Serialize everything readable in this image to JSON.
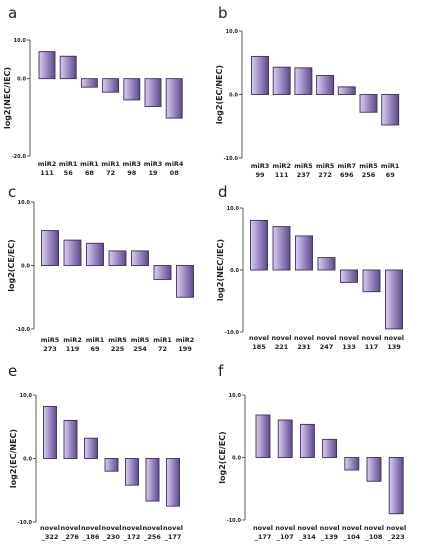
{
  "chart_data": [
    {
      "type": "bar",
      "panel": "a",
      "ylabel": "log2(NEC/IEC)",
      "ylim": [
        -20,
        10
      ],
      "yticks": [
        "10.0",
        "0.0",
        "-20.0"
      ],
      "categories": [
        [
          "miR2",
          "111"
        ],
        [
          "miR1",
          "56"
        ],
        [
          "miR1",
          "68"
        ],
        [
          "miR1",
          "72"
        ],
        [
          "miR3",
          "98"
        ],
        [
          "miR3",
          "19"
        ],
        [
          "miR4",
          "08"
        ]
      ],
      "values": [
        7.0,
        5.8,
        -2.2,
        -3.5,
        -5.5,
        -7.2,
        -10.2
      ],
      "colors": {
        "bar_light": "#d9d0ec",
        "bar_dark": "#5e4a86",
        "bar_edge": "#3c3058"
      }
    },
    {
      "type": "bar",
      "panel": "b",
      "ylabel": "log2(EC/NEC)",
      "ylim": [
        -10,
        10
      ],
      "yticks": [
        "10.0",
        "0.0",
        "-10.0"
      ],
      "categories": [
        [
          "miR3",
          "99"
        ],
        [
          "miR2",
          "111"
        ],
        [
          "miR5",
          "237"
        ],
        [
          "miR5",
          "272"
        ],
        [
          "miR7",
          "696"
        ],
        [
          "miR5",
          "256"
        ],
        [
          "miR1",
          "69"
        ]
      ],
      "values": [
        6.0,
        4.3,
        4.2,
        3.0,
        1.2,
        -2.8,
        -4.8
      ]
    },
    {
      "type": "bar",
      "panel": "c",
      "ylabel": "log2(CE/EC)",
      "ylim": [
        -10,
        10
      ],
      "yticks": [
        "10.0",
        "0.0",
        "-10.0"
      ],
      "categories": [
        [
          "miR5",
          "273"
        ],
        [
          "miR2",
          "119"
        ],
        [
          "miR1",
          "69"
        ],
        [
          "miR5",
          "225"
        ],
        [
          "miR5",
          "254"
        ],
        [
          "miR1",
          "72"
        ],
        [
          "miR2",
          "199"
        ]
      ],
      "values": [
        5.5,
        4.0,
        3.5,
        2.3,
        2.3,
        -2.2,
        -5.0
      ]
    },
    {
      "type": "bar",
      "panel": "d",
      "ylabel": "log2(NEC/IEC)",
      "ylim": [
        -10,
        10
      ],
      "yticks": [
        "10.0",
        "0.0",
        "-10.0"
      ],
      "categories": [
        [
          "novel",
          "185"
        ],
        [
          "novel",
          "221"
        ],
        [
          "novel",
          "231"
        ],
        [
          "novel",
          "247"
        ],
        [
          "novel",
          "133"
        ],
        [
          "novel",
          "117"
        ],
        [
          "novel",
          "139"
        ]
      ],
      "values": [
        8.0,
        7.0,
        5.5,
        2.0,
        -2.0,
        -3.5,
        -9.5
      ]
    },
    {
      "type": "bar",
      "panel": "e",
      "ylabel": "log2(EC/NEC)",
      "ylim": [
        -10,
        10
      ],
      "yticks": [
        "10.0",
        "0.0",
        "-10.0"
      ],
      "categories": [
        [
          "novel",
          "_322"
        ],
        [
          "novel",
          "_276"
        ],
        [
          "novel",
          "_186"
        ],
        [
          "novel",
          "_230"
        ],
        [
          "novel",
          "_172"
        ],
        [
          "novel",
          "_256"
        ],
        [
          "novel",
          "_177"
        ]
      ],
      "values": [
        8.2,
        6.0,
        3.2,
        -2.0,
        -4.2,
        -6.7,
        -7.5
      ]
    },
    {
      "type": "bar",
      "panel": "f",
      "ylabel": "log2(CE/EC)",
      "ylim": [
        -10,
        10
      ],
      "yticks": [
        "10.0",
        "0.0",
        "-10.0"
      ],
      "categories": [
        [
          "novel",
          "_177"
        ],
        [
          "novel",
          "_107"
        ],
        [
          "novel",
          "_314"
        ],
        [
          "novel",
          "_139"
        ],
        [
          "novel",
          "_104"
        ],
        [
          "novel",
          "_108"
        ],
        [
          "novel",
          "_223"
        ]
      ],
      "values": [
        6.8,
        6.0,
        5.3,
        2.9,
        -2.0,
        -3.8,
        -9.0
      ]
    }
  ]
}
